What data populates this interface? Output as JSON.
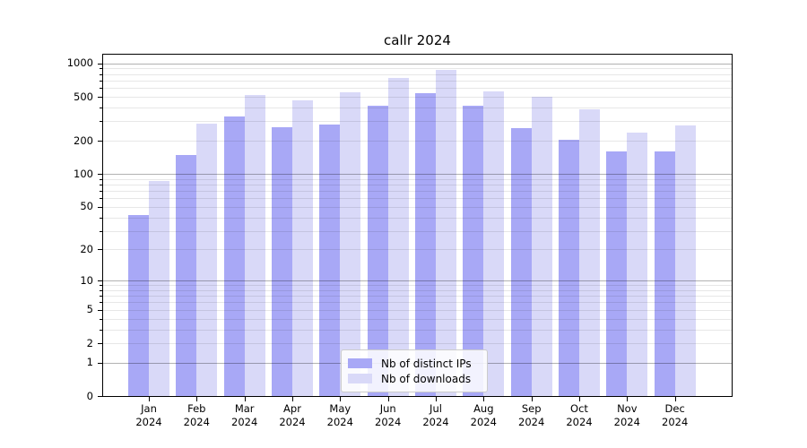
{
  "chart_data": {
    "type": "bar",
    "title": "callr 2024",
    "categories": [
      "Jan",
      "Feb",
      "Mar",
      "Apr",
      "May",
      "Jun",
      "Jul",
      "Aug",
      "Sep",
      "Oct",
      "Nov",
      "Dec"
    ],
    "year_label": "2024",
    "series": [
      {
        "name": "Nb of distinct IPs",
        "color": "#a8a8f6",
        "values": [
          42,
          148,
          330,
          266,
          278,
          415,
          535,
          415,
          258,
          204,
          160,
          160
        ]
      },
      {
        "name": "Nb of downloads",
        "color": "#d9d9f8",
        "values": [
          86,
          288,
          515,
          464,
          550,
          740,
          880,
          555,
          503,
          386,
          236,
          273
        ]
      }
    ],
    "yscale": "log1p",
    "ylim": [
      0,
      1160
    ],
    "yticks_labeled": [
      0,
      1,
      2,
      5,
      10,
      20,
      50,
      100,
      200,
      500,
      1000
    ],
    "gridlines_major": [
      1,
      10,
      100,
      1000
    ],
    "grid": true,
    "legend_position": "lower center",
    "xlabel": "",
    "ylabel": ""
  },
  "colors": {
    "background": "#ffffff",
    "spine": "#000000",
    "bar_distinct_ips": "#a8a8f6",
    "bar_downloads": "#d9d9f8",
    "legend_border": "#cccccc"
  }
}
